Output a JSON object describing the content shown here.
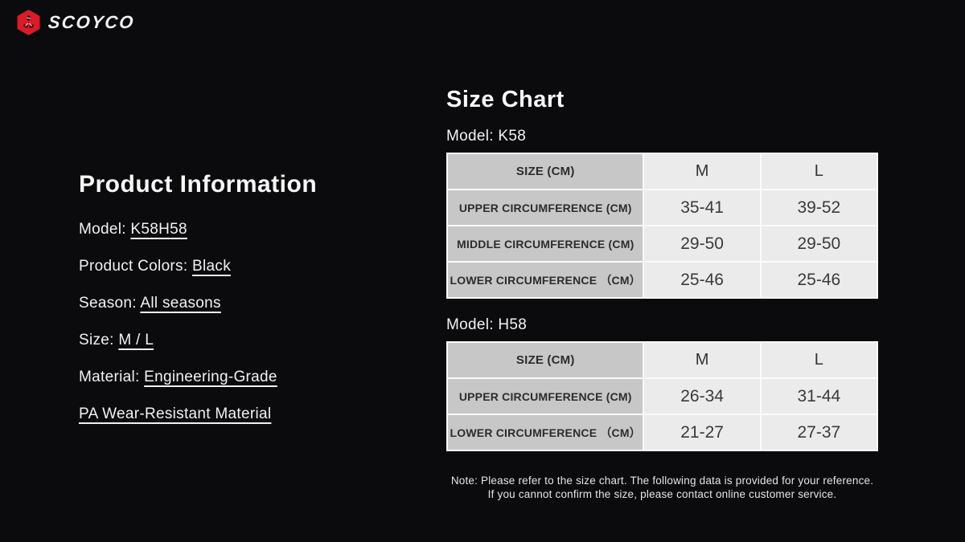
{
  "logo": {
    "brand": "SCOYCO",
    "icon": "scoyco-hexagon-logo",
    "icon_color": "#da1b28"
  },
  "product_info": {
    "title": "Product Information",
    "items": [
      {
        "label": "Model: ",
        "value": "K58H58"
      },
      {
        "label": "Product Colors: ",
        "value": "Black"
      },
      {
        "label": "Season: ",
        "value": "All seasons"
      },
      {
        "label": "Size: ",
        "value": "M / L"
      },
      {
        "label": "Material: ",
        "value": "Engineering-Grade"
      },
      {
        "label": "",
        "value": "PA Wear-Resistant Material"
      }
    ]
  },
  "size_chart": {
    "title": "Size Chart",
    "tables": [
      {
        "model_label": "Model: K58",
        "headers": [
          "SIZE (CM)",
          "M",
          "L"
        ],
        "rows": [
          [
            "UPPER CIRCUMFERENCE (CM)",
            "35-41",
            "39-52"
          ],
          [
            "MIDDLE CIRCUMFERENCE (CM)",
            "29-50",
            "29-50"
          ],
          [
            "LOWER CIRCUMFERENCE （CM）",
            "25-46",
            "25-46"
          ]
        ]
      },
      {
        "model_label": "Model: H58",
        "headers": [
          "SIZE (CM)",
          "M",
          "L"
        ],
        "rows": [
          [
            "UPPER CIRCUMFERENCE (CM)",
            "26-34",
            "31-44"
          ],
          [
            "LOWER CIRCUMFERENCE （CM）",
            "21-27",
            "27-37"
          ]
        ]
      }
    ],
    "note_line1": "Note: Please refer to the size chart. The following data is provided for your reference.",
    "note_line2": "If you cannot confirm the size, please contact online customer service.",
    "table_colors": {
      "label_cell_bg": "#c7c7c7",
      "value_cell_bg": "#ebebeb",
      "separator": "#fbfbfb",
      "text": "#2c2c2c"
    }
  },
  "page_colors": {
    "background": "#0b0b0d",
    "text": "#f2f2f2",
    "brand_red": "#da1b28"
  }
}
